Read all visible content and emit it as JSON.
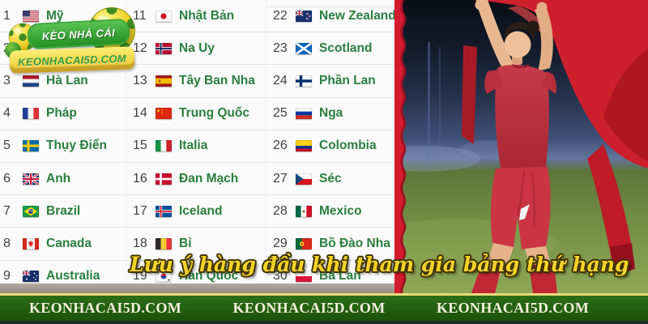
{
  "logo": {
    "title": "KÈO NHÀ CÁI",
    "subtitle": "KEONHACAI5D.COM"
  },
  "ranking_table": {
    "columns": [
      {
        "rows": [
          {
            "rank": "1",
            "country": "Mỹ",
            "flag": "us"
          },
          {
            "rank": "2",
            "country": "",
            "flag": ""
          },
          {
            "rank": "3",
            "country": "Hà Lan",
            "flag": "nl"
          },
          {
            "rank": "4",
            "country": "Pháp",
            "flag": "fr"
          },
          {
            "rank": "5",
            "country": "Thụy Điển",
            "flag": "se"
          },
          {
            "rank": "6",
            "country": "Anh",
            "flag": "gb"
          },
          {
            "rank": "7",
            "country": "Brazil",
            "flag": "br"
          },
          {
            "rank": "8",
            "country": "Canada",
            "flag": "ca"
          },
          {
            "rank": "9",
            "country": "Australia",
            "flag": "au"
          }
        ]
      },
      {
        "rows": [
          {
            "rank": "11",
            "country": "Nhật Bản",
            "flag": "jp"
          },
          {
            "rank": "12",
            "country": "Na Uy",
            "flag": "no"
          },
          {
            "rank": "13",
            "country": "Tây Ban Nha",
            "flag": "es"
          },
          {
            "rank": "14",
            "country": "Trung Quốc",
            "flag": "cn"
          },
          {
            "rank": "15",
            "country": "Italia",
            "flag": "it"
          },
          {
            "rank": "16",
            "country": "Đan Mạch",
            "flag": "dk"
          },
          {
            "rank": "17",
            "country": "Iceland",
            "flag": "is"
          },
          {
            "rank": "18",
            "country": "Bỉ",
            "flag": "be"
          },
          {
            "rank": "19",
            "country": "Hàn Quốc",
            "flag": "kr"
          }
        ]
      },
      {
        "rows": [
          {
            "rank": "22",
            "country": "New Zealand",
            "flag": "nz"
          },
          {
            "rank": "23",
            "country": "Scotland",
            "flag": "scot"
          },
          {
            "rank": "24",
            "country": "Phần Lan",
            "flag": "fi"
          },
          {
            "rank": "25",
            "country": "Nga",
            "flag": "ru"
          },
          {
            "rank": "26",
            "country": "Colombia",
            "flag": "co"
          },
          {
            "rank": "27",
            "country": "Séc",
            "flag": "cz"
          },
          {
            "rank": "28",
            "country": "Mexico",
            "flag": "mx"
          },
          {
            "rank": "29",
            "country": "Bồ Đào Nha",
            "flag": "pt"
          },
          {
            "rank": "30",
            "country": "Ba Lan",
            "flag": "pl"
          }
        ]
      }
    ]
  },
  "caption": {
    "text": "Lưu ý hàng đầu khi tham gia bảng thứ hạng"
  },
  "footer": {
    "items": [
      "KEONHACAI5D.COM",
      "KEONHACAI5D.COM",
      "KEONHACAI5D.COM"
    ]
  },
  "colors": {
    "country_text": "#2a7e3d",
    "rank_text": "#414141",
    "footer_bg": "#1f5c0e",
    "footer_accent_line": "#e9dc7a",
    "caption_yellow": "#f6d328",
    "torn_edge_red": "#d41b30",
    "logo_banner_green": "#2f9e2f",
    "logo_ribbon_yellow": "#f3d84a"
  }
}
